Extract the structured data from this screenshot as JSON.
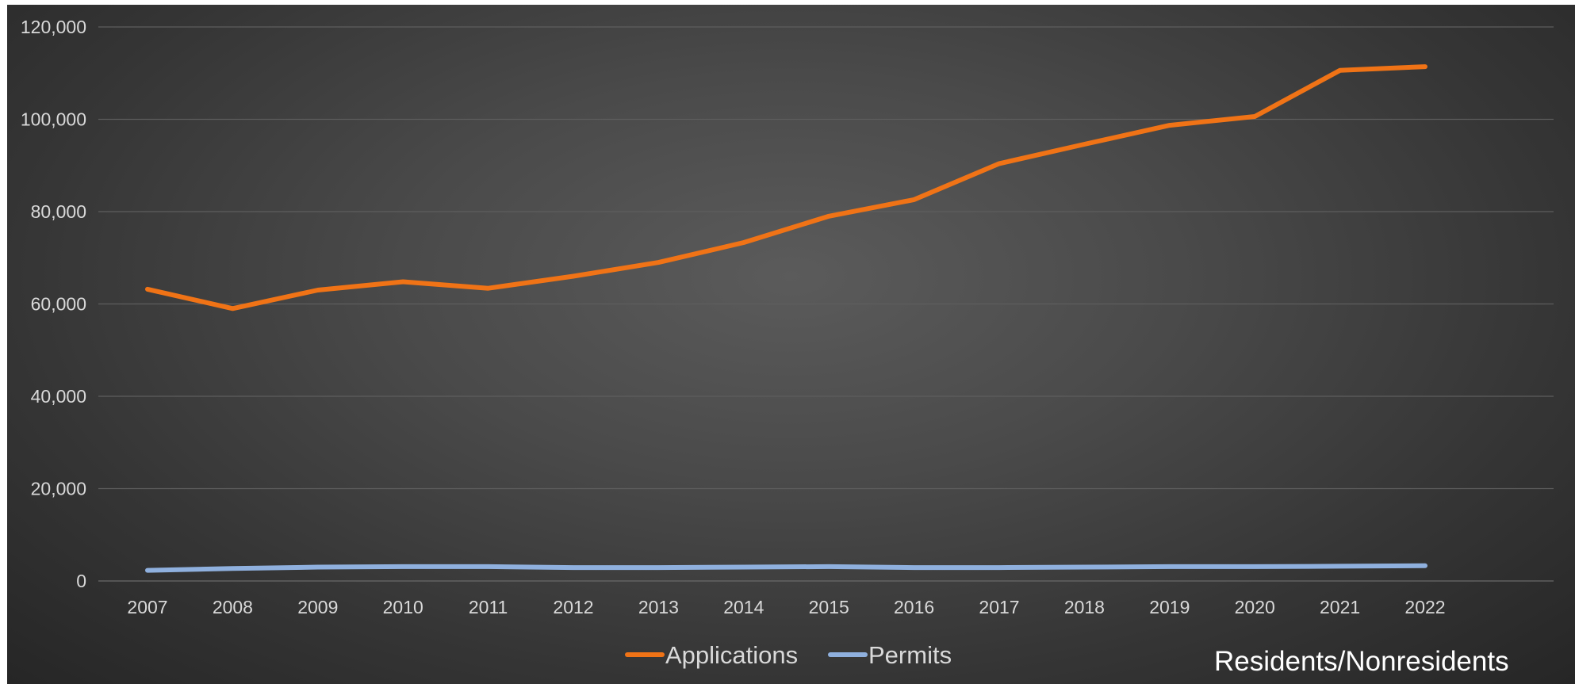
{
  "chart_data": {
    "type": "line",
    "title": "",
    "xlabel": "",
    "ylabel": "",
    "categories": [
      "2007",
      "2008",
      "2009",
      "2010",
      "2011",
      "2012",
      "2013",
      "2014",
      "2015",
      "2016",
      "2017",
      "2018",
      "2019",
      "2020",
      "2021",
      "2022"
    ],
    "ylim": [
      0,
      120000
    ],
    "y_ticks": [
      0,
      20000,
      40000,
      60000,
      80000,
      100000,
      120000
    ],
    "y_tick_labels": [
      "0",
      "20,000",
      "40,000",
      "60,000",
      "80,000",
      "100,000",
      "120,000"
    ],
    "grid": true,
    "legend_position": "bottom",
    "series": [
      {
        "name": "Applications",
        "color": "#f07316",
        "values": [
          63200,
          59000,
          63000,
          64800,
          63400,
          66000,
          69000,
          73300,
          79000,
          82600,
          90400,
          94600,
          98700,
          100600,
          110600,
          111400
        ]
      },
      {
        "name": "Permits",
        "color": "#8fb0de",
        "values": [
          2300,
          2700,
          3000,
          3100,
          3100,
          2900,
          2900,
          3000,
          3100,
          2900,
          2900,
          3000,
          3100,
          3100,
          3200,
          3300
        ]
      }
    ],
    "annotation": "Residents/Nonresidents"
  }
}
